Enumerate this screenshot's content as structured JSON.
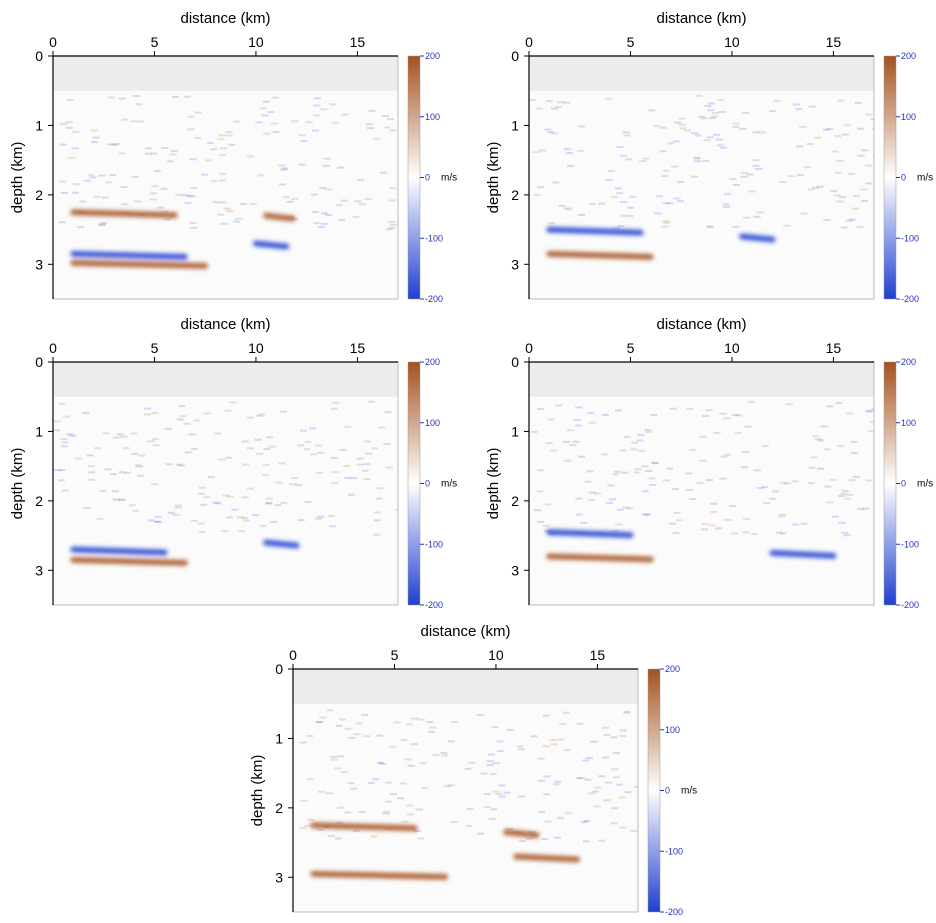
{
  "chart_data": [
    {
      "type": "heatmap",
      "xlabel": "distance (km)",
      "ylabel": "depth (km)",
      "xticks": [
        0,
        5,
        10,
        15
      ],
      "yticks": [
        0,
        1,
        2,
        3
      ],
      "xlim": [
        0,
        17
      ],
      "ylim": [
        0,
        3.5
      ],
      "water_depth_km": 0.5,
      "colorbar": {
        "ticks": [
          200,
          100,
          0,
          -100,
          -200
        ],
        "unit": "m/s",
        "range": [
          -200,
          200
        ],
        "colors": [
          "#1f3fd0",
          "#ffffff",
          "#a4521e"
        ]
      },
      "reflectors": [
        {
          "x": [
            1.0,
            6.0
          ],
          "depth": 2.25,
          "sign": 1
        },
        {
          "x": [
            1.0,
            6.5
          ],
          "depth": 2.85,
          "sign": -1
        },
        {
          "x": [
            1.0,
            7.5
          ],
          "depth": 2.98,
          "sign": 1
        },
        {
          "x": [
            10.5,
            11.8
          ],
          "depth": 2.3,
          "sign": 1
        },
        {
          "x": [
            10.0,
            11.5
          ],
          "depth": 2.7,
          "sign": -1
        }
      ]
    },
    {
      "type": "heatmap",
      "xlabel": "distance (km)",
      "ylabel": "depth (km)",
      "xticks": [
        0,
        5,
        10,
        15
      ],
      "yticks": [
        0,
        1,
        2,
        3
      ],
      "xlim": [
        0,
        17
      ],
      "ylim": [
        0,
        3.5
      ],
      "water_depth_km": 0.5,
      "colorbar": {
        "ticks": [
          200,
          100,
          0,
          -100,
          -200
        ],
        "unit": "m/s",
        "range": [
          -200,
          200
        ],
        "colors": [
          "#1f3fd0",
          "#ffffff",
          "#a4521e"
        ]
      },
      "reflectors": [
        {
          "x": [
            1.0,
            5.5
          ],
          "depth": 2.5,
          "sign": -1
        },
        {
          "x": [
            1.0,
            6.0
          ],
          "depth": 2.85,
          "sign": 1
        },
        {
          "x": [
            10.5,
            12.0
          ],
          "depth": 2.6,
          "sign": -1
        }
      ]
    },
    {
      "type": "heatmap",
      "xlabel": "distance (km)",
      "ylabel": "depth (km)",
      "xticks": [
        0,
        5,
        10,
        15
      ],
      "yticks": [
        0,
        1,
        2,
        3
      ],
      "xlim": [
        0,
        17
      ],
      "ylim": [
        0,
        3.5
      ],
      "water_depth_km": 0.5,
      "colorbar": {
        "ticks": [
          200,
          100,
          0,
          -100,
          -200
        ],
        "unit": "m/s",
        "range": [
          -200,
          200
        ],
        "colors": [
          "#1f3fd0",
          "#ffffff",
          "#a4521e"
        ]
      },
      "reflectors": [
        {
          "x": [
            1.0,
            5.5
          ],
          "depth": 2.7,
          "sign": -1
        },
        {
          "x": [
            1.0,
            6.5
          ],
          "depth": 2.85,
          "sign": 1
        },
        {
          "x": [
            10.5,
            12.0
          ],
          "depth": 2.6,
          "sign": -1
        }
      ]
    },
    {
      "type": "heatmap",
      "xlabel": "distance (km)",
      "ylabel": "depth (km)",
      "xticks": [
        0,
        5,
        10,
        15
      ],
      "yticks": [
        0,
        1,
        2,
        3
      ],
      "xlim": [
        0,
        17
      ],
      "ylim": [
        0,
        3.5
      ],
      "water_depth_km": 0.5,
      "colorbar": {
        "ticks": [
          200,
          100,
          0,
          -100,
          -200
        ],
        "unit": "m/s",
        "range": [
          -200,
          200
        ],
        "colors": [
          "#1f3fd0",
          "#ffffff",
          "#a4521e"
        ]
      },
      "reflectors": [
        {
          "x": [
            1.0,
            5.0
          ],
          "depth": 2.45,
          "sign": -1
        },
        {
          "x": [
            1.0,
            6.0
          ],
          "depth": 2.8,
          "sign": 1
        },
        {
          "x": [
            12.0,
            15.0
          ],
          "depth": 2.75,
          "sign": -1
        }
      ]
    },
    {
      "type": "heatmap",
      "xlabel": "distance (km)",
      "ylabel": "depth (km)",
      "xticks": [
        0,
        5,
        10,
        15
      ],
      "yticks": [
        0,
        1,
        2,
        3
      ],
      "xlim": [
        0,
        17
      ],
      "ylim": [
        0,
        3.5
      ],
      "water_depth_km": 0.5,
      "colorbar": {
        "ticks": [
          200,
          100,
          0,
          -100,
          -200
        ],
        "unit": "m/s",
        "range": [
          -200,
          200
        ],
        "colors": [
          "#1f3fd0",
          "#ffffff",
          "#a4521e"
        ]
      },
      "reflectors": [
        {
          "x": [
            1.0,
            6.0
          ],
          "depth": 2.25,
          "sign": 1
        },
        {
          "x": [
            1.0,
            7.5
          ],
          "depth": 2.95,
          "sign": 1
        },
        {
          "x": [
            10.5,
            12.0
          ],
          "depth": 2.35,
          "sign": 1
        },
        {
          "x": [
            11.0,
            14.0
          ],
          "depth": 2.7,
          "sign": 1
        }
      ]
    }
  ]
}
